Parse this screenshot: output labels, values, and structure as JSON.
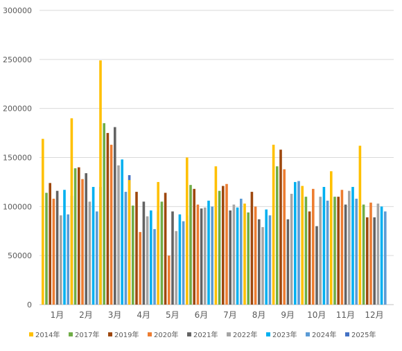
{
  "chart_data": {
    "type": "bar",
    "categories": [
      "1月",
      "2月",
      "3月",
      "4月",
      "5月",
      "6月",
      "7月",
      "8月",
      "9月",
      "10月",
      "11月",
      "12月"
    ],
    "ylim": [
      0,
      300000
    ],
    "yticks": [
      0,
      50000,
      100000,
      150000,
      200000,
      250000,
      300000
    ],
    "ytick_labels": [
      "0",
      "50000",
      "100000",
      "150000",
      "200000",
      "250000",
      "300000"
    ],
    "grid": true,
    "legend_position": "bottom",
    "series": [
      {
        "name": "2014年",
        "color": "#FFC000",
        "values": [
          169000,
          190000,
          249000,
          127000,
          125000,
          150000,
          141000,
          103000,
          163000,
          121000,
          136000,
          162000
        ]
      },
      {
        "name": "2017年",
        "color": "#70AD47",
        "values": [
          114000,
          139000,
          185000,
          101000,
          105000,
          122000,
          116000,
          94000,
          141000,
          110000,
          110000,
          102000
        ]
      },
      {
        "name": "2019年",
        "color": "#9E480E",
        "values": [
          124000,
          140000,
          175000,
          115000,
          114000,
          118000,
          121000,
          115000,
          158000,
          95000,
          110000,
          89000
        ]
      },
      {
        "name": "2020年",
        "color": "#ED7D31",
        "values": [
          108000,
          128000,
          163000,
          74000,
          50000,
          102000,
          123000,
          100000,
          138000,
          118000,
          117000,
          104000
        ]
      },
      {
        "name": "2021年",
        "color": "#636363",
        "values": [
          116000,
          134000,
          181000,
          105000,
          95000,
          98000,
          96000,
          87000,
          87000,
          80000,
          102000,
          89000
        ]
      },
      {
        "name": "2022年",
        "color": "#A5A5A5",
        "values": [
          91000,
          105000,
          142000,
          90000,
          75000,
          99000,
          102000,
          79000,
          113000,
          110000,
          116000,
          103000
        ]
      },
      {
        "name": "2023年",
        "color": "#00B0F0",
        "values": [
          117000,
          120000,
          148000,
          96000,
          92000,
          106000,
          99000,
          97000,
          125000,
          120000,
          120000,
          100000
        ]
      },
      {
        "name": "2024年",
        "color": "#5B9BD5",
        "values": [
          92000,
          95000,
          115000,
          77000,
          85000,
          100000,
          108000,
          91000,
          126000,
          106000,
          108000,
          95000
        ]
      },
      {
        "name": "2025年",
        "color": "#4472C4",
        "values": [
          111000,
          120000,
          132000,
          95000,
          91000,
          null,
          null,
          null,
          null,
          null,
          null,
          null
        ]
      }
    ]
  }
}
